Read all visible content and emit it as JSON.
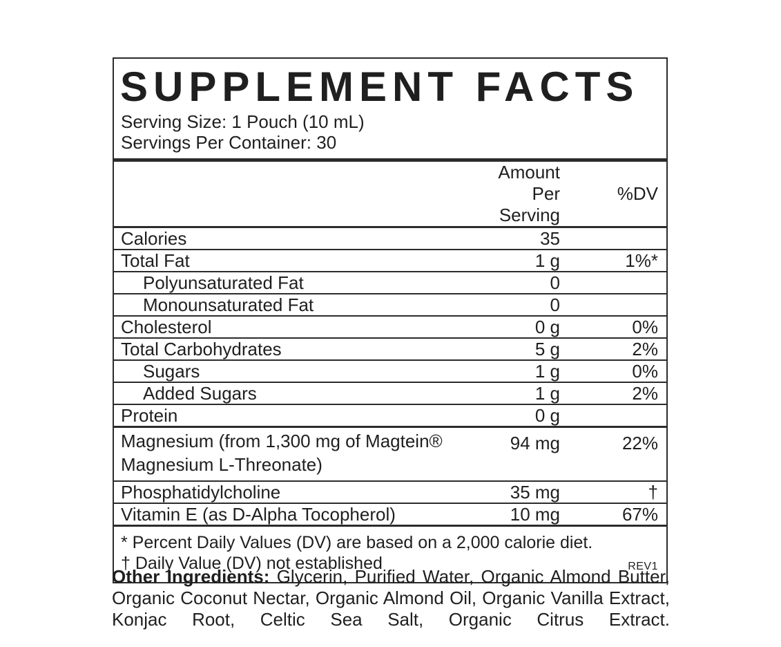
{
  "colors": {
    "text": "#1f1f1f",
    "border": "#2b2b2b",
    "background": "#ffffff"
  },
  "label": {
    "title": "SUPPLEMENT FACTS",
    "serving_size": "Serving Size: 1 Pouch (10 mL)",
    "servings_per_container": "Servings Per Container: 30",
    "columns": {
      "amount": "Amount Per Serving",
      "dv": "%DV"
    },
    "rows": [
      {
        "name": "Calories",
        "amount": "35",
        "dv": "",
        "indent": false,
        "border": "thin",
        "two_line": false
      },
      {
        "name": "Total Fat",
        "amount": "1 g",
        "dv": "1%*",
        "indent": false,
        "border": "thin",
        "two_line": false
      },
      {
        "name": "Polyunsaturated Fat",
        "amount": "0",
        "dv": "",
        "indent": true,
        "border": "thin",
        "two_line": false
      },
      {
        "name": "Monounsaturated Fat",
        "amount": "0",
        "dv": "",
        "indent": true,
        "border": "thin",
        "two_line": false
      },
      {
        "name": "Cholesterol",
        "amount": "0 g",
        "dv": "0%",
        "indent": false,
        "border": "thin",
        "two_line": false
      },
      {
        "name": "Total Carbohydrates",
        "amount": "5 g",
        "dv": "2%",
        "indent": false,
        "border": "thin",
        "two_line": false
      },
      {
        "name": "Sugars",
        "amount": "1 g",
        "dv": "0%",
        "indent": true,
        "border": "thin",
        "two_line": false
      },
      {
        "name": "Added Sugars",
        "amount": "1 g",
        "dv": "2%",
        "indent": true,
        "border": "thin",
        "two_line": false
      },
      {
        "name": "Protein",
        "amount": "0 g",
        "dv": "",
        "indent": false,
        "border": "thick",
        "two_line": false
      },
      {
        "name": "Magnesium (from 1,300 mg of Magtein® Magnesium L-Threonate)",
        "amount": "94 mg",
        "dv": "22%",
        "indent": false,
        "border": "thin",
        "two_line": true
      },
      {
        "name": "Phosphatidylcholine",
        "amount": "35 mg",
        "dv": "†",
        "indent": false,
        "border": "thin",
        "two_line": false
      },
      {
        "name": "Vitamin E (as D-Alpha Tocopherol)",
        "amount": "10 mg",
        "dv": "67%",
        "indent": false,
        "border": "thick",
        "two_line": false
      }
    ],
    "footnotes": [
      "* Percent Daily Values (DV) are based on a 2,000 calorie diet.",
      "† Daily Value (DV) not established"
    ],
    "rev": "REV1"
  },
  "other_ingredients": {
    "label": "Other Ingredients:",
    "text": " Glycerin, Purified Water, Organic Almond Butter, Organic Coconut Nectar, Organic Almond Oil, Organic Vanilla Extract, Konjac Root, Celtic Sea Salt, Organic Citrus Extract."
  }
}
